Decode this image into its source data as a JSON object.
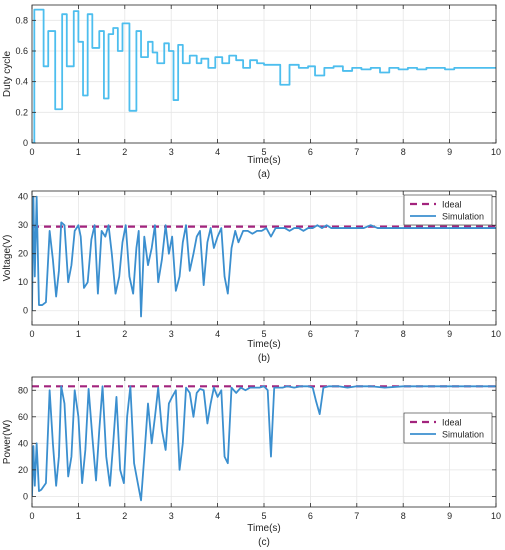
{
  "chart_data": [
    {
      "type": "line",
      "panel_label": "(a)",
      "xlabel": "Time(s)",
      "ylabel": "Duty cycle",
      "xlim": [
        0,
        10
      ],
      "ylim": [
        0,
        0.9
      ],
      "xticks": [
        0,
        1,
        2,
        3,
        4,
        5,
        6,
        7,
        8,
        9,
        10
      ],
      "yticks": [
        0,
        0.2,
        0.4,
        0.6,
        0.8
      ],
      "ytick_labels": [
        "0",
        "0.2",
        "0.4",
        "0.6",
        "0.8"
      ],
      "grid": true,
      "series": [
        {
          "color": "#4dbeee",
          "step": true,
          "x": [
            0,
            0.05,
            0.25,
            0.35,
            0.5,
            0.65,
            0.75,
            0.9,
            1.0,
            1.1,
            1.2,
            1.3,
            1.45,
            1.55,
            1.65,
            1.75,
            1.85,
            1.95,
            2.1,
            2.25,
            2.35,
            2.5,
            2.6,
            2.7,
            2.85,
            2.95,
            3.05,
            3.15,
            3.25,
            3.4,
            3.55,
            3.65,
            3.8,
            3.95,
            4.1,
            4.25,
            4.4,
            4.55,
            4.7,
            4.85,
            5.0,
            5.15,
            5.35,
            5.55,
            5.75,
            5.95,
            6.1,
            6.3,
            6.5,
            6.7,
            6.9,
            7.1,
            7.3,
            7.5,
            7.7,
            7.9,
            8.1,
            8.3,
            8.5,
            8.7,
            8.9,
            9.1,
            9.3,
            9.5,
            9.7,
            10.0
          ],
          "y": [
            0.0,
            0.87,
            0.5,
            0.73,
            0.22,
            0.84,
            0.5,
            0.86,
            0.66,
            0.31,
            0.84,
            0.62,
            0.73,
            0.29,
            0.71,
            0.75,
            0.6,
            0.78,
            0.21,
            0.73,
            0.56,
            0.66,
            0.59,
            0.52,
            0.65,
            0.6,
            0.28,
            0.64,
            0.52,
            0.57,
            0.52,
            0.55,
            0.49,
            0.56,
            0.52,
            0.57,
            0.54,
            0.49,
            0.54,
            0.52,
            0.51,
            0.51,
            0.38,
            0.51,
            0.49,
            0.5,
            0.44,
            0.49,
            0.5,
            0.47,
            0.49,
            0.48,
            0.49,
            0.46,
            0.49,
            0.48,
            0.49,
            0.48,
            0.49,
            0.49,
            0.48,
            0.49,
            0.49,
            0.49,
            0.49,
            0.49
          ]
        }
      ]
    },
    {
      "type": "line",
      "panel_label": "(b)",
      "xlabel": "Time(s)",
      "ylabel": "Voltage(V)",
      "xlim": [
        0,
        10
      ],
      "ylim": [
        -5,
        42
      ],
      "xticks": [
        0,
        1,
        2,
        3,
        4,
        5,
        6,
        7,
        8,
        9,
        10
      ],
      "yticks": [
        0,
        10,
        20,
        30,
        40
      ],
      "grid": true,
      "legend": "top-right",
      "series": [
        {
          "name": "Ideal",
          "color": "#a2237d",
          "dashed": true,
          "x": [
            0,
            10
          ],
          "y": [
            29.5,
            29.5
          ]
        },
        {
          "name": "Simulation",
          "color": "#3b8fcf",
          "x": [
            0,
            0.03,
            0.06,
            0.1,
            0.15,
            0.22,
            0.3,
            0.38,
            0.45,
            0.52,
            0.58,
            0.63,
            0.7,
            0.78,
            0.85,
            0.92,
            1.0,
            1.05,
            1.12,
            1.2,
            1.28,
            1.35,
            1.42,
            1.5,
            1.58,
            1.65,
            1.72,
            1.8,
            1.88,
            1.95,
            2.02,
            2.1,
            2.18,
            2.25,
            2.3,
            2.35,
            2.42,
            2.5,
            2.58,
            2.65,
            2.72,
            2.8,
            2.88,
            2.95,
            3.02,
            3.1,
            3.18,
            3.25,
            3.32,
            3.4,
            3.48,
            3.55,
            3.62,
            3.7,
            3.78,
            3.85,
            3.92,
            4.0,
            4.08,
            4.15,
            4.22,
            4.3,
            4.38,
            4.45,
            4.55,
            4.65,
            4.75,
            4.85,
            4.95,
            5.05,
            5.15,
            5.25,
            5.35,
            5.45,
            5.55,
            5.65,
            5.75,
            5.85,
            5.95,
            6.05,
            6.15,
            6.25,
            6.35,
            6.45,
            6.55,
            6.7,
            6.85,
            7.0,
            7.15,
            7.3,
            7.45,
            7.6,
            7.8,
            8.0,
            8.25,
            8.5,
            8.75,
            9.0,
            9.25,
            9.5,
            9.75,
            10.0
          ],
          "y": [
            0,
            40,
            12,
            40,
            2,
            2,
            3,
            28,
            18,
            5,
            14,
            31,
            30,
            10,
            16,
            28,
            30,
            26,
            8,
            10,
            25,
            30,
            6,
            28,
            26,
            30,
            20,
            6,
            12,
            24,
            30,
            12,
            6,
            22,
            28,
            -2,
            26,
            16,
            22,
            30,
            10,
            18,
            30,
            20,
            26,
            7,
            12,
            24,
            30,
            14,
            20,
            26,
            28,
            9,
            24,
            29,
            22,
            26,
            29,
            12,
            6,
            22,
            28,
            24,
            28,
            28,
            27,
            28,
            28,
            29,
            26,
            29,
            29,
            29,
            28,
            29,
            29,
            28,
            29,
            29,
            30,
            29,
            30,
            29,
            29,
            29,
            29,
            29,
            29,
            30,
            29,
            29,
            29,
            29,
            29,
            29,
            29,
            29,
            29,
            29,
            29,
            29
          ]
        }
      ]
    },
    {
      "type": "line",
      "panel_label": "(c)",
      "xlabel": "Time(s)",
      "ylabel": "Power(W)",
      "xlim": [
        0,
        10
      ],
      "ylim": [
        -8,
        90
      ],
      "xticks": [
        0,
        1,
        2,
        3,
        4,
        5,
        6,
        7,
        8,
        9,
        10
      ],
      "yticks": [
        0,
        20,
        40,
        60,
        80
      ],
      "grid": true,
      "legend": "right",
      "series": [
        {
          "name": "Ideal",
          "color": "#a2237d",
          "dashed": true,
          "x": [
            0,
            10
          ],
          "y": [
            83,
            83
          ]
        },
        {
          "name": "Simulation",
          "color": "#3b8fcf",
          "x": [
            0,
            0.03,
            0.06,
            0.1,
            0.15,
            0.2,
            0.3,
            0.38,
            0.45,
            0.52,
            0.58,
            0.63,
            0.7,
            0.78,
            0.85,
            0.92,
            1.0,
            1.08,
            1.15,
            1.22,
            1.3,
            1.38,
            1.45,
            1.52,
            1.6,
            1.68,
            1.75,
            1.82,
            1.9,
            1.98,
            2.05,
            2.12,
            2.2,
            2.28,
            2.35,
            2.42,
            2.5,
            2.58,
            2.65,
            2.72,
            2.8,
            2.88,
            2.95,
            3.02,
            3.1,
            3.18,
            3.25,
            3.32,
            3.4,
            3.48,
            3.55,
            3.62,
            3.7,
            3.78,
            3.85,
            3.92,
            4.0,
            4.08,
            4.15,
            4.22,
            4.3,
            4.4,
            4.5,
            4.6,
            4.7,
            4.8,
            4.9,
            5.0,
            5.08,
            5.15,
            5.22,
            5.3,
            5.4,
            5.5,
            5.65,
            5.8,
            5.95,
            6.05,
            6.12,
            6.2,
            6.28,
            6.4,
            6.6,
            6.8,
            7.0,
            7.3,
            7.6,
            8.0,
            8.5,
            9.0,
            9.5,
            10.0
          ],
          "y": [
            0,
            38,
            8,
            40,
            4,
            5,
            10,
            80,
            40,
            8,
            30,
            83,
            70,
            15,
            30,
            80,
            60,
            10,
            35,
            81,
            45,
            12,
            50,
            83,
            30,
            8,
            40,
            75,
            20,
            10,
            60,
            83,
            25,
            10,
            -3,
            30,
            70,
            40,
            60,
            82,
            50,
            35,
            70,
            75,
            80,
            20,
            40,
            82,
            78,
            60,
            78,
            81,
            80,
            55,
            70,
            82,
            75,
            80,
            30,
            25,
            82,
            78,
            82,
            80,
            82,
            82,
            82,
            83,
            80,
            30,
            82,
            82,
            82,
            83,
            82,
            83,
            83,
            82,
            72,
            62,
            82,
            83,
            83,
            82,
            83,
            83,
            82,
            83,
            83,
            83,
            83,
            83
          ]
        }
      ]
    }
  ]
}
